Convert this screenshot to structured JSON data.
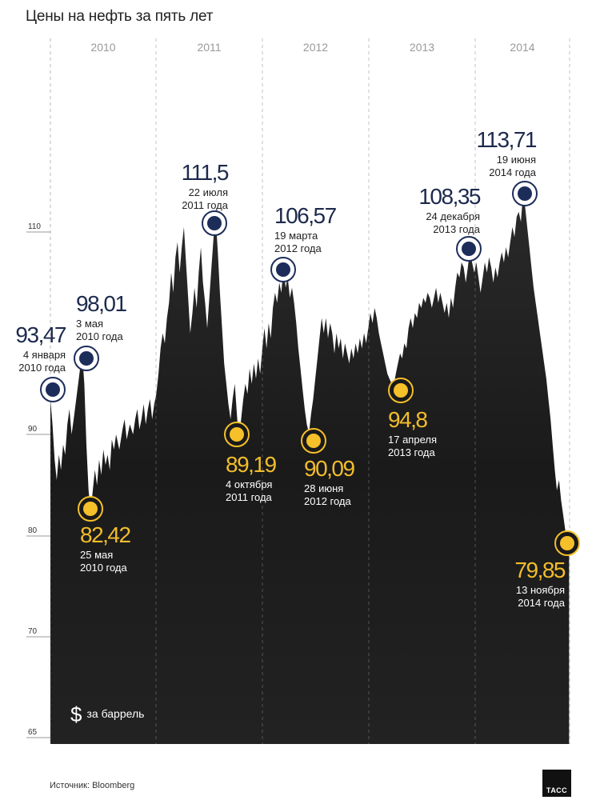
{
  "title": "Цены на нефть за пять лет",
  "source": "Источник: Bloomberg",
  "logo": "ТАСС",
  "unit": {
    "symbol": "$",
    "label": "за баррель"
  },
  "colors": {
    "background": "#ffffff",
    "area": "#1b1b1b",
    "dark_marker": "#1d2d5a",
    "light_marker": "#f5c02a",
    "dark_text": "#1d2a4d",
    "light_text": "#f2bd2c"
  },
  "chart_data": {
    "type": "area",
    "title": "Цены на нефть за пять лет",
    "ylabel": "$ за баррель",
    "ylim": [
      65,
      115
    ],
    "yticks": [
      65,
      70,
      80,
      90,
      110
    ],
    "year_labels": [
      "2010",
      "2011",
      "2012",
      "2013",
      "2014"
    ],
    "x_range": [
      2010.0,
      2014.9
    ],
    "series": [
      {
        "values": [
          [
            2010.0,
            93.5
          ],
          [
            2010.02,
            91.0
          ],
          [
            2010.04,
            87.5
          ],
          [
            2010.06,
            85.5
          ],
          [
            2010.08,
            88.0
          ],
          [
            2010.1,
            86.5
          ],
          [
            2010.12,
            89.0
          ],
          [
            2010.14,
            88.0
          ],
          [
            2010.16,
            91.0
          ],
          [
            2010.18,
            92.5
          ],
          [
            2010.2,
            90.0
          ],
          [
            2010.22,
            91.5
          ],
          [
            2010.25,
            94.0
          ],
          [
            2010.28,
            96.5
          ],
          [
            2010.3,
            98.0
          ],
          [
            2010.32,
            95.0
          ],
          [
            2010.34,
            89.0
          ],
          [
            2010.36,
            84.5
          ],
          [
            2010.38,
            82.4
          ],
          [
            2010.4,
            84.5
          ],
          [
            2010.42,
            86.5
          ],
          [
            2010.44,
            85.0
          ],
          [
            2010.46,
            87.5
          ],
          [
            2010.48,
            86.0
          ],
          [
            2010.5,
            88.5
          ],
          [
            2010.52,
            87.0
          ],
          [
            2010.54,
            88.0
          ],
          [
            2010.56,
            86.5
          ],
          [
            2010.58,
            89.5
          ],
          [
            2010.6,
            88.5
          ],
          [
            2010.62,
            90.0
          ],
          [
            2010.65,
            88.5
          ],
          [
            2010.68,
            90.5
          ],
          [
            2010.7,
            91.5
          ],
          [
            2010.72,
            89.5
          ],
          [
            2010.75,
            91.0
          ],
          [
            2010.78,
            90.0
          ],
          [
            2010.8,
            91.5
          ],
          [
            2010.82,
            92.5
          ],
          [
            2010.84,
            90.5
          ],
          [
            2010.86,
            91.5
          ],
          [
            2010.88,
            93.0
          ],
          [
            2010.9,
            91.0
          ],
          [
            2010.92,
            92.5
          ],
          [
            2010.94,
            93.5
          ],
          [
            2010.96,
            91.5
          ],
          [
            2010.98,
            93.0
          ],
          [
            2011.0,
            94.0
          ],
          [
            2011.02,
            96.0
          ],
          [
            2011.04,
            98.5
          ],
          [
            2011.06,
            100.0
          ],
          [
            2011.08,
            99.0
          ],
          [
            2011.1,
            101.5
          ],
          [
            2011.12,
            103.0
          ],
          [
            2011.14,
            106.0
          ],
          [
            2011.16,
            104.0
          ],
          [
            2011.18,
            107.5
          ],
          [
            2011.2,
            109.0
          ],
          [
            2011.22,
            106.0
          ],
          [
            2011.24,
            108.5
          ],
          [
            2011.26,
            110.5
          ],
          [
            2011.28,
            107.0
          ],
          [
            2011.3,
            103.5
          ],
          [
            2011.32,
            100.0
          ],
          [
            2011.34,
            102.0
          ],
          [
            2011.36,
            104.5
          ],
          [
            2011.38,
            102.5
          ],
          [
            2011.4,
            106.0
          ],
          [
            2011.42,
            108.5
          ],
          [
            2011.44,
            105.0
          ],
          [
            2011.46,
            103.0
          ],
          [
            2011.48,
            100.5
          ],
          [
            2011.5,
            103.5
          ],
          [
            2011.52,
            106.5
          ],
          [
            2011.54,
            109.5
          ],
          [
            2011.56,
            111.5
          ],
          [
            2011.58,
            108.0
          ],
          [
            2011.6,
            104.0
          ],
          [
            2011.62,
            100.5
          ],
          [
            2011.64,
            97.0
          ],
          [
            2011.66,
            95.0
          ],
          [
            2011.68,
            93.0
          ],
          [
            2011.7,
            91.5
          ],
          [
            2011.72,
            93.5
          ],
          [
            2011.74,
            95.0
          ],
          [
            2011.76,
            92.0
          ],
          [
            2011.78,
            89.2
          ],
          [
            2011.8,
            91.5
          ],
          [
            2011.82,
            93.5
          ],
          [
            2011.84,
            95.0
          ],
          [
            2011.86,
            94.0
          ],
          [
            2011.88,
            96.5
          ],
          [
            2011.9,
            95.0
          ],
          [
            2011.92,
            97.0
          ],
          [
            2011.94,
            95.5
          ],
          [
            2011.96,
            97.5
          ],
          [
            2011.98,
            96.0
          ],
          [
            2012.0,
            98.5
          ],
          [
            2012.02,
            100.5
          ],
          [
            2012.04,
            98.5
          ],
          [
            2012.06,
            101.0
          ],
          [
            2012.08,
            99.5
          ],
          [
            2012.1,
            102.5
          ],
          [
            2012.12,
            104.0
          ],
          [
            2012.14,
            103.0
          ],
          [
            2012.16,
            105.0
          ],
          [
            2012.18,
            104.0
          ],
          [
            2012.2,
            106.6
          ],
          [
            2012.22,
            104.5
          ],
          [
            2012.24,
            105.5
          ],
          [
            2012.26,
            103.5
          ],
          [
            2012.28,
            104.5
          ],
          [
            2012.3,
            103.0
          ],
          [
            2012.32,
            101.0
          ],
          [
            2012.34,
            98.5
          ],
          [
            2012.36,
            96.5
          ],
          [
            2012.38,
            94.5
          ],
          [
            2012.4,
            92.5
          ],
          [
            2012.42,
            91.0
          ],
          [
            2012.44,
            90.1
          ],
          [
            2012.46,
            92.0
          ],
          [
            2012.48,
            93.5
          ],
          [
            2012.5,
            95.5
          ],
          [
            2012.52,
            97.5
          ],
          [
            2012.54,
            99.5
          ],
          [
            2012.56,
            101.5
          ],
          [
            2012.58,
            100.0
          ],
          [
            2012.6,
            101.5
          ],
          [
            2012.62,
            99.5
          ],
          [
            2012.64,
            101.0
          ],
          [
            2012.66,
            100.0
          ],
          [
            2012.68,
            98.0
          ],
          [
            2012.7,
            100.0
          ],
          [
            2012.72,
            98.5
          ],
          [
            2012.74,
            99.5
          ],
          [
            2012.76,
            97.5
          ],
          [
            2012.78,
            99.0
          ],
          [
            2012.8,
            98.0
          ],
          [
            2012.82,
            97.0
          ],
          [
            2012.84,
            98.5
          ],
          [
            2012.86,
            97.5
          ],
          [
            2012.88,
            99.0
          ],
          [
            2012.9,
            98.0
          ],
          [
            2012.92,
            99.5
          ],
          [
            2012.94,
            98.5
          ],
          [
            2012.96,
            100.0
          ],
          [
            2012.98,
            99.0
          ],
          [
            2013.0,
            100.5
          ],
          [
            2013.02,
            102.0
          ],
          [
            2013.04,
            101.0
          ],
          [
            2013.06,
            102.5
          ],
          [
            2013.08,
            101.5
          ],
          [
            2013.1,
            100.0
          ],
          [
            2013.12,
            99.0
          ],
          [
            2013.14,
            98.0
          ],
          [
            2013.16,
            97.0
          ],
          [
            2013.18,
            96.0
          ],
          [
            2013.2,
            95.5
          ],
          [
            2013.22,
            95.0
          ],
          [
            2013.24,
            94.8
          ],
          [
            2013.26,
            96.0
          ],
          [
            2013.28,
            97.0
          ],
          [
            2013.3,
            98.0
          ],
          [
            2013.32,
            97.5
          ],
          [
            2013.34,
            99.0
          ],
          [
            2013.36,
            98.5
          ],
          [
            2013.38,
            100.5
          ],
          [
            2013.4,
            101.5
          ],
          [
            2013.42,
            100.5
          ],
          [
            2013.44,
            102.0
          ],
          [
            2013.46,
            101.5
          ],
          [
            2013.48,
            103.0
          ],
          [
            2013.5,
            102.5
          ],
          [
            2013.52,
            103.5
          ],
          [
            2013.54,
            103.0
          ],
          [
            2013.56,
            104.0
          ],
          [
            2013.58,
            103.5
          ],
          [
            2013.6,
            102.5
          ],
          [
            2013.62,
            103.5
          ],
          [
            2013.64,
            104.5
          ],
          [
            2013.66,
            103.0
          ],
          [
            2013.68,
            104.0
          ],
          [
            2013.7,
            103.0
          ],
          [
            2013.72,
            102.0
          ],
          [
            2013.74,
            103.0
          ],
          [
            2013.76,
            101.5
          ],
          [
            2013.78,
            103.5
          ],
          [
            2013.8,
            102.5
          ],
          [
            2013.82,
            104.5
          ],
          [
            2013.84,
            106.0
          ],
          [
            2013.86,
            105.5
          ],
          [
            2013.88,
            107.0
          ],
          [
            2013.9,
            106.5
          ],
          [
            2013.92,
            105.0
          ],
          [
            2013.94,
            106.5
          ],
          [
            2013.96,
            108.35
          ],
          [
            2013.98,
            107.0
          ],
          [
            2014.0,
            106.0
          ],
          [
            2014.02,
            107.0
          ],
          [
            2014.04,
            105.5
          ],
          [
            2014.06,
            104.0
          ],
          [
            2014.08,
            105.5
          ],
          [
            2014.1,
            107.0
          ],
          [
            2014.12,
            106.0
          ],
          [
            2014.14,
            107.5
          ],
          [
            2014.16,
            106.5
          ],
          [
            2014.18,
            105.0
          ],
          [
            2014.2,
            106.5
          ],
          [
            2014.22,
            105.5
          ],
          [
            2014.24,
            107.0
          ],
          [
            2014.26,
            108.0
          ],
          [
            2014.28,
            107.0
          ],
          [
            2014.3,
            108.5
          ],
          [
            2014.32,
            107.5
          ],
          [
            2014.34,
            109.0
          ],
          [
            2014.36,
            110.5
          ],
          [
            2014.38,
            109.5
          ],
          [
            2014.4,
            111.5
          ],
          [
            2014.42,
            112.0
          ],
          [
            2014.44,
            111.0
          ],
          [
            2014.46,
            113.71
          ],
          [
            2014.48,
            112.5
          ],
          [
            2014.5,
            110.5
          ],
          [
            2014.52,
            108.5
          ],
          [
            2014.54,
            106.5
          ],
          [
            2014.56,
            104.5
          ],
          [
            2014.58,
            103.0
          ],
          [
            2014.6,
            101.5
          ],
          [
            2014.62,
            100.0
          ],
          [
            2014.64,
            98.5
          ],
          [
            2014.66,
            97.0
          ],
          [
            2014.68,
            95.5
          ],
          [
            2014.7,
            93.5
          ],
          [
            2014.72,
            91.5
          ],
          [
            2014.74,
            89.0
          ],
          [
            2014.76,
            86.5
          ],
          [
            2014.78,
            84.5
          ],
          [
            2014.8,
            85.5
          ],
          [
            2014.82,
            83.5
          ],
          [
            2014.84,
            82.0
          ],
          [
            2014.86,
            80.5
          ],
          [
            2014.87,
            79.85
          ],
          [
            2014.88,
            79.85
          ]
        ]
      }
    ],
    "annotations": [
      {
        "value": "93,47",
        "date": [
          "4 января",
          "2010 года"
        ],
        "x": 2010.0,
        "y": 93.47,
        "tone": "dark"
      },
      {
        "value": "98,01",
        "date": [
          "3 мая",
          "2010 года"
        ],
        "x": 2010.3,
        "y": 98.01,
        "tone": "dark"
      },
      {
        "value": "82,42",
        "date": [
          "25 мая",
          "2010 года"
        ],
        "x": 2010.38,
        "y": 82.42,
        "tone": "light"
      },
      {
        "value": "111,5",
        "date": [
          "22 июля",
          "2011 года"
        ],
        "x": 2011.56,
        "y": 111.5,
        "tone": "dark"
      },
      {
        "value": "89,19",
        "date": [
          "4 октября",
          "2011 года"
        ],
        "x": 2011.78,
        "y": 89.19,
        "tone": "light"
      },
      {
        "value": "106,57",
        "date": [
          "19 марта",
          "2012 года"
        ],
        "x": 2012.2,
        "y": 106.57,
        "tone": "dark"
      },
      {
        "value": "90,09",
        "date": [
          "28 июня",
          "2012 года"
        ],
        "x": 2012.44,
        "y": 90.09,
        "tone": "light"
      },
      {
        "value": "94,8",
        "date": [
          "17 апреля",
          "2013 года"
        ],
        "x": 2013.24,
        "y": 94.8,
        "tone": "light"
      },
      {
        "value": "108,35",
        "date": [
          "24 декабря",
          "2013 года"
        ],
        "x": 2013.96,
        "y": 108.35,
        "tone": "dark"
      },
      {
        "value": "113,71",
        "date": [
          "19 июня",
          "2014 года"
        ],
        "x": 2014.46,
        "y": 113.71,
        "tone": "dark"
      },
      {
        "value": "79,85",
        "date": [
          "13 ноября",
          "2014 года"
        ],
        "x": 2014.87,
        "y": 79.85,
        "tone": "light"
      }
    ]
  }
}
